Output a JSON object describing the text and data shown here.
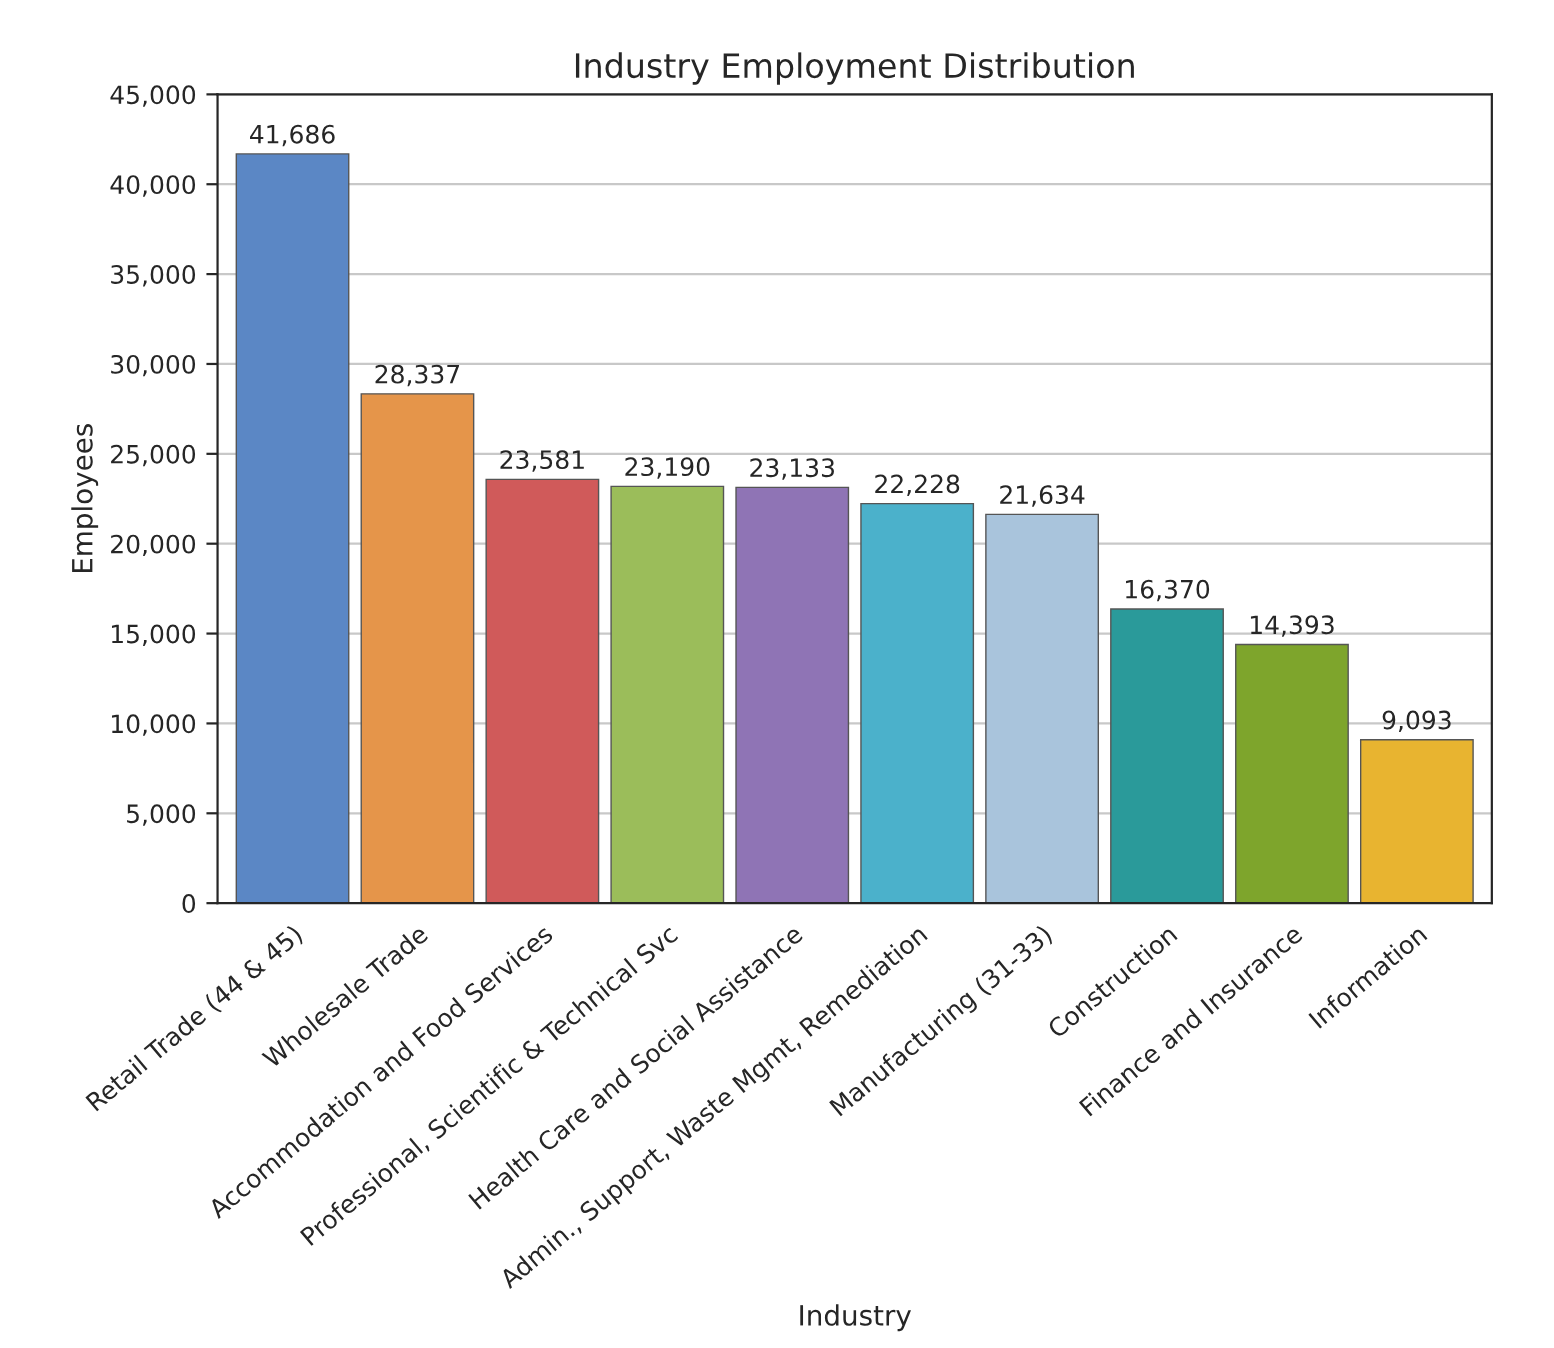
{
  "chart_data": {
    "type": "bar",
    "title": "Industry Employment Distribution",
    "xlabel": "Industry",
    "ylabel": "Employees",
    "categories": [
      "Retail Trade (44 & 45)",
      "Wholesale Trade",
      "Accommodation and Food Services",
      "Professional, Scientific & Technical Svc",
      "Health Care and Social Assistance",
      "Admin., Support, Waste Mgmt, Remediation",
      "Manufacturing (31-33)",
      "Construction",
      "Finance and Insurance",
      "Information"
    ],
    "values": [
      41686,
      28337,
      23581,
      23190,
      23133,
      22228,
      21634,
      16370,
      14393,
      9093
    ],
    "colors": [
      "#5b87c5",
      "#e5954a",
      "#d05a5a",
      "#9bbd5a",
      "#8f74b5",
      "#4bb1cb",
      "#a9c4dc",
      "#2a9a9a",
      "#7ea52c",
      "#e8b430"
    ],
    "value_labels": [
      "41,686",
      "28,337",
      "23,581",
      "23,190",
      "23,133",
      "22,228",
      "21,634",
      "16,370",
      "14,393",
      "9,093"
    ],
    "ylim": [
      0,
      45000
    ],
    "yticks": [
      {
        "value": 0,
        "label": "0"
      },
      {
        "value": 5000,
        "label": "5,000"
      },
      {
        "value": 10000,
        "label": "10,000"
      },
      {
        "value": 15000,
        "label": "15,000"
      },
      {
        "value": 20000,
        "label": "20,000"
      },
      {
        "value": 25000,
        "label": "25,000"
      },
      {
        "value": 30000,
        "label": "30,000"
      },
      {
        "value": 35000,
        "label": "35,000"
      },
      {
        "value": 40000,
        "label": "40,000"
      },
      {
        "value": 45000,
        "label": "45,000"
      }
    ],
    "grid": "y"
  }
}
